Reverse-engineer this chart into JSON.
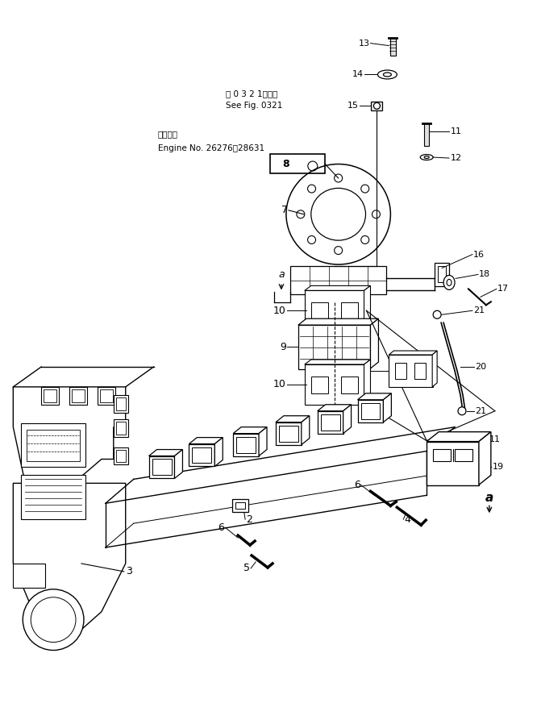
{
  "bg_color": "#ffffff",
  "line_color": "#000000",
  "fig_width": 6.71,
  "fig_height": 8.98,
  "dpi": 100,
  "text": {
    "see_fig_ja": "第 0 3 2 1図参照",
    "see_fig_en": "See Fig. 0321",
    "engine_ja": "適用号機",
    "engine_en": "Engine No. 26276～28631"
  }
}
